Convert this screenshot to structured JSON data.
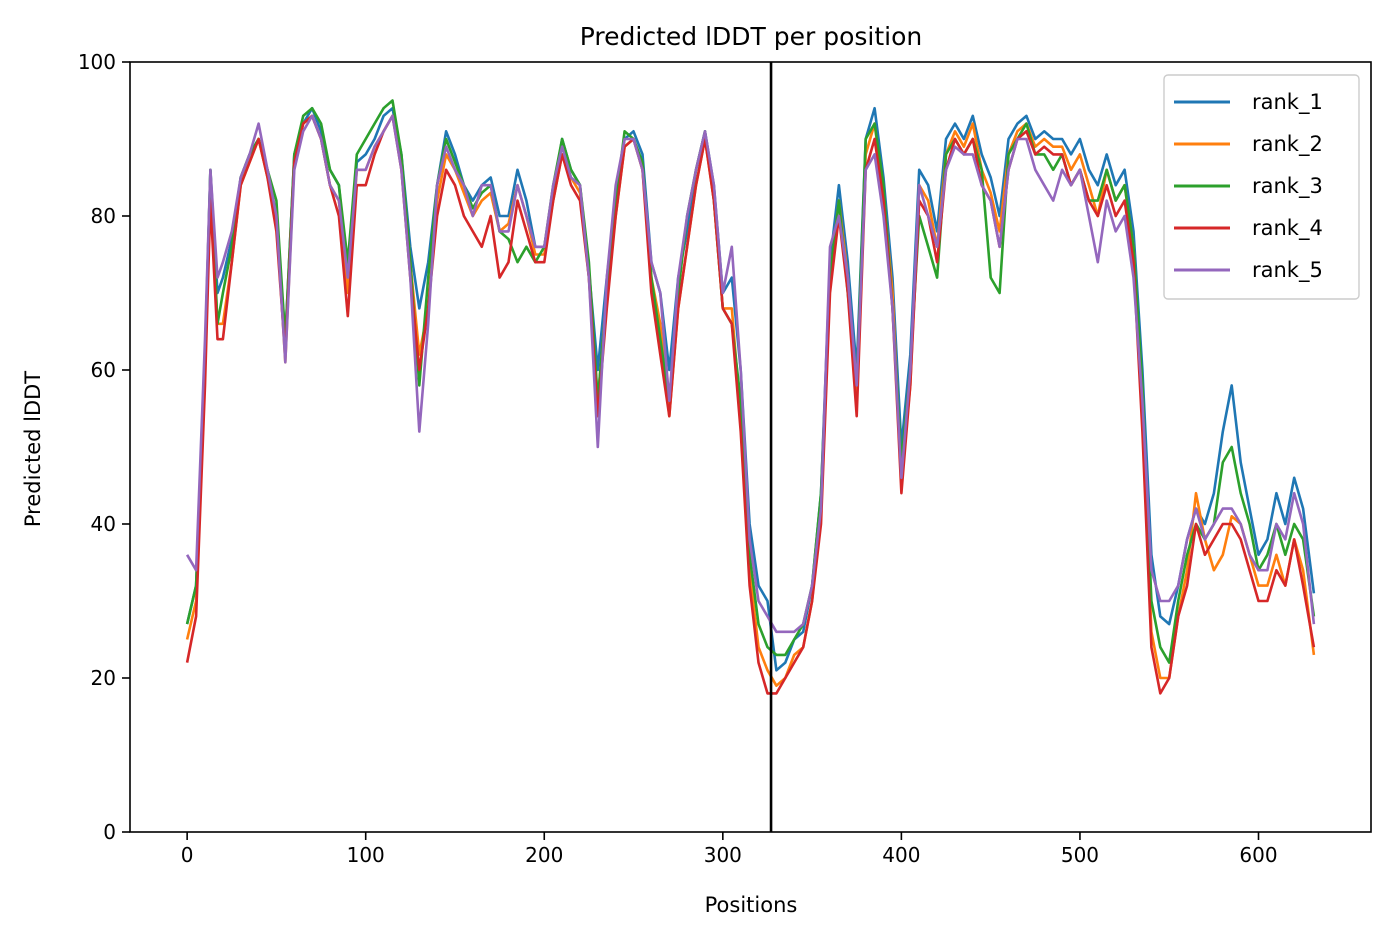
{
  "chart_data": {
    "type": "line",
    "title": "Predicted lDDT per position",
    "xlabel": "Positions",
    "ylabel": "Predicted lDDT",
    "xlim": [
      -32,
      663
    ],
    "ylim": [
      0,
      100
    ],
    "xticks": [
      0,
      100,
      200,
      300,
      400,
      500,
      600
    ],
    "yticks": [
      0,
      20,
      40,
      60,
      80,
      100
    ],
    "grid": false,
    "legend_position": "top-right",
    "chain_break_x": 327,
    "chain_break_color": "#000000",
    "x": [
      0,
      5,
      10,
      13,
      17,
      20,
      25,
      30,
      35,
      40,
      45,
      50,
      55,
      60,
      65,
      70,
      75,
      80,
      85,
      90,
      95,
      100,
      105,
      110,
      115,
      120,
      125,
      130,
      135,
      140,
      145,
      150,
      155,
      160,
      165,
      170,
      175,
      180,
      185,
      190,
      195,
      200,
      205,
      210,
      215,
      220,
      225,
      230,
      235,
      240,
      245,
      250,
      255,
      260,
      265,
      270,
      275,
      280,
      285,
      290,
      295,
      300,
      305,
      310,
      315,
      320,
      325,
      330,
      335,
      340,
      345,
      350,
      355,
      360,
      365,
      370,
      375,
      380,
      385,
      390,
      395,
      400,
      405,
      410,
      415,
      420,
      425,
      430,
      435,
      440,
      445,
      450,
      455,
      460,
      465,
      470,
      475,
      480,
      485,
      490,
      495,
      500,
      505,
      510,
      515,
      520,
      525,
      530,
      535,
      540,
      545,
      550,
      555,
      560,
      565,
      570,
      575,
      580,
      585,
      590,
      595,
      600,
      605,
      610,
      615,
      620,
      625,
      631
    ],
    "series": [
      {
        "name": "rank_1",
        "color": "#1f77b4",
        "values": [
          27,
          32,
          62,
          86,
          70,
          72,
          77,
          85,
          88,
          90,
          86,
          80,
          64,
          88,
          92,
          94,
          91,
          86,
          84,
          72,
          87,
          88,
          90,
          93,
          94,
          88,
          76,
          68,
          74,
          84,
          91,
          88,
          84,
          82,
          84,
          85,
          80,
          80,
          86,
          82,
          76,
          76,
          83,
          90,
          86,
          84,
          73,
          60,
          72,
          82,
          90,
          91,
          88,
          74,
          70,
          60,
          72,
          78,
          86,
          91,
          84,
          70,
          72,
          60,
          40,
          32,
          30,
          21,
          22,
          25,
          26,
          32,
          44,
          74,
          84,
          74,
          60,
          90,
          94,
          85,
          72,
          50,
          62,
          86,
          84,
          78,
          90,
          92,
          90,
          93,
          88,
          85,
          80,
          90,
          92,
          93,
          90,
          91,
          90,
          90,
          88,
          90,
          86,
          84,
          88,
          84,
          86,
          78,
          60,
          36,
          28,
          27,
          32,
          38,
          42,
          40,
          44,
          52,
          58,
          48,
          42,
          36,
          38,
          44,
          40,
          46,
          42,
          31
        ]
      },
      {
        "name": "rank_2",
        "color": "#ff7f0e",
        "values": [
          25,
          30,
          60,
          84,
          66,
          66,
          74,
          84,
          87,
          90,
          85,
          80,
          61,
          87,
          92,
          93,
          90,
          84,
          82,
          70,
          86,
          86,
          89,
          91,
          93,
          87,
          74,
          62,
          68,
          82,
          88,
          86,
          83,
          80,
          82,
          83,
          78,
          79,
          84,
          80,
          75,
          75,
          82,
          88,
          85,
          83,
          72,
          56,
          70,
          80,
          89,
          90,
          86,
          72,
          66,
          54,
          68,
          76,
          84,
          90,
          82,
          68,
          68,
          54,
          34,
          24,
          21,
          19,
          20,
          23,
          24,
          30,
          42,
          72,
          82,
          72,
          56,
          88,
          92,
          83,
          70,
          46,
          58,
          84,
          82,
          76,
          88,
          91,
          89,
          92,
          86,
          83,
          78,
          88,
          91,
          92,
          89,
          90,
          89,
          89,
          86,
          88,
          84,
          80,
          86,
          82,
          84,
          76,
          56,
          26,
          20,
          20,
          28,
          34,
          44,
          38,
          34,
          36,
          41,
          40,
          36,
          32,
          32,
          36,
          32,
          38,
          34,
          23
        ]
      },
      {
        "name": "rank_3",
        "color": "#2ca02c",
        "values": [
          27,
          32,
          62,
          86,
          66,
          70,
          76,
          85,
          88,
          90,
          86,
          82,
          64,
          88,
          93,
          94,
          92,
          86,
          84,
          74,
          88,
          90,
          92,
          94,
          95,
          88,
          74,
          58,
          72,
          84,
          90,
          87,
          84,
          81,
          83,
          84,
          78,
          77,
          74,
          76,
          74,
          76,
          84,
          90,
          86,
          84,
          74,
          56,
          70,
          82,
          91,
          90,
          87,
          72,
          64,
          56,
          70,
          80,
          86,
          91,
          82,
          68,
          66,
          56,
          36,
          27,
          24,
          23,
          23,
          25,
          27,
          32,
          44,
          72,
          82,
          70,
          58,
          90,
          92,
          84,
          68,
          48,
          60,
          80,
          76,
          72,
          88,
          90,
          88,
          90,
          86,
          72,
          70,
          88,
          90,
          92,
          88,
          88,
          86,
          88,
          84,
          86,
          82,
          82,
          86,
          82,
          84,
          76,
          58,
          30,
          24,
          22,
          30,
          36,
          40,
          38,
          40,
          48,
          50,
          44,
          40,
          34,
          36,
          40,
          36,
          40,
          38,
          28
        ]
      },
      {
        "name": "rank_4",
        "color": "#d62728",
        "values": [
          22,
          28,
          58,
          82,
          64,
          64,
          74,
          84,
          87,
          90,
          85,
          78,
          62,
          87,
          92,
          93,
          90,
          84,
          80,
          67,
          84,
          84,
          88,
          91,
          93,
          86,
          72,
          60,
          68,
          80,
          86,
          84,
          80,
          78,
          76,
          80,
          72,
          74,
          82,
          78,
          74,
          74,
          82,
          88,
          84,
          82,
          72,
          54,
          68,
          80,
          89,
          90,
          86,
          70,
          62,
          54,
          68,
          76,
          84,
          90,
          82,
          68,
          66,
          52,
          32,
          22,
          18,
          18,
          20,
          22,
          24,
          30,
          40,
          70,
          80,
          70,
          54,
          86,
          90,
          82,
          68,
          44,
          58,
          82,
          80,
          74,
          86,
          90,
          88,
          90,
          84,
          82,
          76,
          86,
          90,
          91,
          88,
          89,
          88,
          88,
          84,
          86,
          82,
          80,
          84,
          80,
          82,
          74,
          52,
          24,
          18,
          20,
          28,
          32,
          40,
          36,
          38,
          40,
          40,
          38,
          34,
          30,
          30,
          34,
          32,
          38,
          32,
          24
        ]
      },
      {
        "name": "rank_5",
        "color": "#9467bd",
        "values": [
          36,
          34,
          64,
          86,
          72,
          74,
          78,
          85,
          88,
          92,
          86,
          80,
          61,
          86,
          91,
          93,
          90,
          84,
          82,
          72,
          86,
          86,
          89,
          91,
          93,
          86,
          72,
          52,
          66,
          84,
          89,
          86,
          84,
          80,
          84,
          84,
          78,
          78,
          84,
          80,
          76,
          76,
          84,
          89,
          85,
          84,
          72,
          50,
          72,
          84,
          90,
          90,
          86,
          74,
          70,
          56,
          72,
          80,
          86,
          91,
          84,
          70,
          76,
          60,
          38,
          30,
          28,
          26,
          26,
          26,
          27,
          32,
          42,
          76,
          80,
          72,
          58,
          86,
          88,
          80,
          68,
          46,
          60,
          84,
          80,
          76,
          86,
          89,
          88,
          88,
          84,
          82,
          76,
          86,
          90,
          90,
          86,
          84,
          82,
          86,
          84,
          86,
          80,
          74,
          82,
          78,
          80,
          72,
          56,
          34,
          30,
          30,
          32,
          38,
          42,
          38,
          40,
          42,
          42,
          40,
          36,
          34,
          34,
          40,
          38,
          44,
          40,
          27
        ]
      }
    ]
  }
}
